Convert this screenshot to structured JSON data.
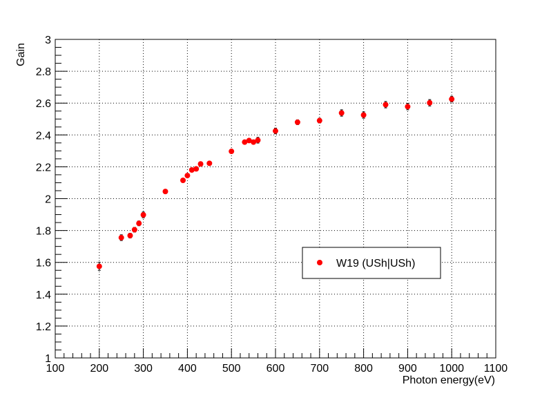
{
  "chart_data": {
    "type": "scatter",
    "title": "",
    "xlabel": "Photon energy(eV)",
    "ylabel": "Gain",
    "xlim": [
      100,
      1100
    ],
    "ylim": [
      1,
      3
    ],
    "x_ticks": [
      100,
      200,
      300,
      400,
      500,
      600,
      700,
      800,
      900,
      1000,
      1100
    ],
    "x_tick_labels": [
      "100",
      "200",
      "300",
      "400",
      "500",
      "600",
      "700",
      "800",
      "900",
      "1000",
      "1100"
    ],
    "y_ticks": [
      1,
      1.2,
      1.4,
      1.6,
      1.8,
      2,
      2.2,
      2.4,
      2.6,
      2.8,
      3
    ],
    "y_tick_labels": [
      "1",
      "1.2",
      "1.4",
      "1.6",
      "1.8",
      "2",
      "2.2",
      "2.4",
      "2.6",
      "2.8",
      "3"
    ],
    "grid": true,
    "legend_position": "center-right",
    "series": [
      {
        "name": "W19 (USh|USh)",
        "color": "#ff0000",
        "marker": "circle",
        "points": [
          {
            "x": 200,
            "y": 1.575,
            "err": 0.025
          },
          {
            "x": 250,
            "y": 1.755,
            "err": 0.018
          },
          {
            "x": 270,
            "y": 1.768,
            "err": 0.015
          },
          {
            "x": 280,
            "y": 1.805,
            "err": 0.015
          },
          {
            "x": 290,
            "y": 1.845,
            "err": 0.015
          },
          {
            "x": 300,
            "y": 1.898,
            "err": 0.018
          },
          {
            "x": 350,
            "y": 2.045,
            "err": 0.008
          },
          {
            "x": 390,
            "y": 2.115,
            "err": 0.008
          },
          {
            "x": 400,
            "y": 2.145,
            "err": 0.008
          },
          {
            "x": 410,
            "y": 2.18,
            "err": 0.008
          },
          {
            "x": 420,
            "y": 2.187,
            "err": 0.008
          },
          {
            "x": 430,
            "y": 2.218,
            "err": 0.01
          },
          {
            "x": 450,
            "y": 2.222,
            "err": 0.008
          },
          {
            "x": 500,
            "y": 2.297,
            "err": 0.01
          },
          {
            "x": 530,
            "y": 2.355,
            "err": 0.01
          },
          {
            "x": 540,
            "y": 2.365,
            "err": 0.01
          },
          {
            "x": 550,
            "y": 2.355,
            "err": 0.012
          },
          {
            "x": 560,
            "y": 2.367,
            "err": 0.018
          },
          {
            "x": 600,
            "y": 2.425,
            "err": 0.018
          },
          {
            "x": 650,
            "y": 2.48,
            "err": 0.015
          },
          {
            "x": 700,
            "y": 2.49,
            "err": 0.015
          },
          {
            "x": 750,
            "y": 2.538,
            "err": 0.02
          },
          {
            "x": 800,
            "y": 2.525,
            "err": 0.02
          },
          {
            "x": 850,
            "y": 2.59,
            "err": 0.02
          },
          {
            "x": 900,
            "y": 2.578,
            "err": 0.02
          },
          {
            "x": 950,
            "y": 2.602,
            "err": 0.02
          },
          {
            "x": 1000,
            "y": 2.625,
            "err": 0.018
          }
        ]
      }
    ]
  }
}
